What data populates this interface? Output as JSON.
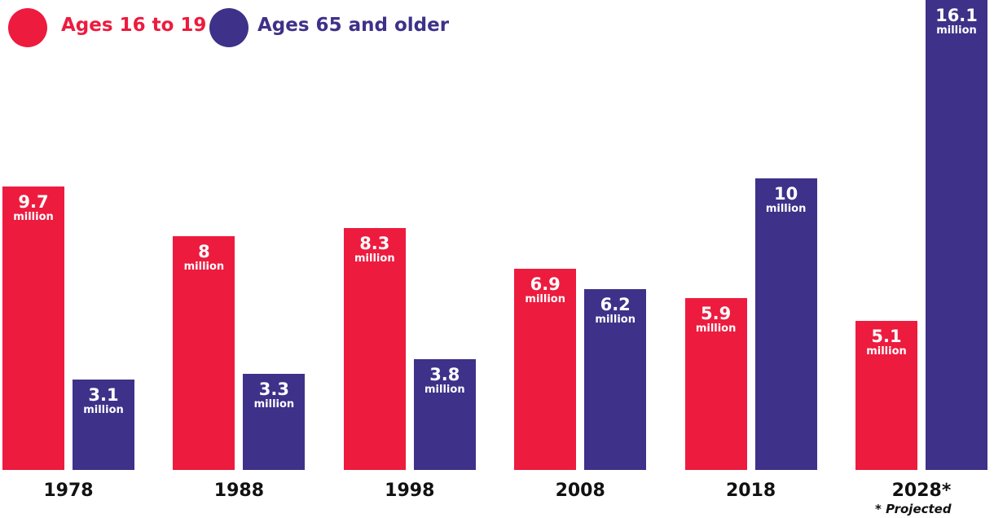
{
  "chart_data": {
    "type": "bar",
    "categories": [
      "1978",
      "1988",
      "1998",
      "2008",
      "2018",
      "2028*"
    ],
    "series": [
      {
        "name": "Ages 16 to 19",
        "color": "#ED1B3E",
        "values": [
          9.7,
          8,
          8.3,
          6.9,
          5.9,
          5.1
        ]
      },
      {
        "name": "Ages 65 and older",
        "color": "#3E3189",
        "values": [
          3.1,
          3.3,
          3.8,
          6.2,
          10,
          16.1
        ]
      }
    ],
    "value_unit": "million",
    "ylim": [
      0,
      16.1
    ],
    "legend_position": "top-left",
    "grid": false,
    "footnote": "* Projected"
  }
}
